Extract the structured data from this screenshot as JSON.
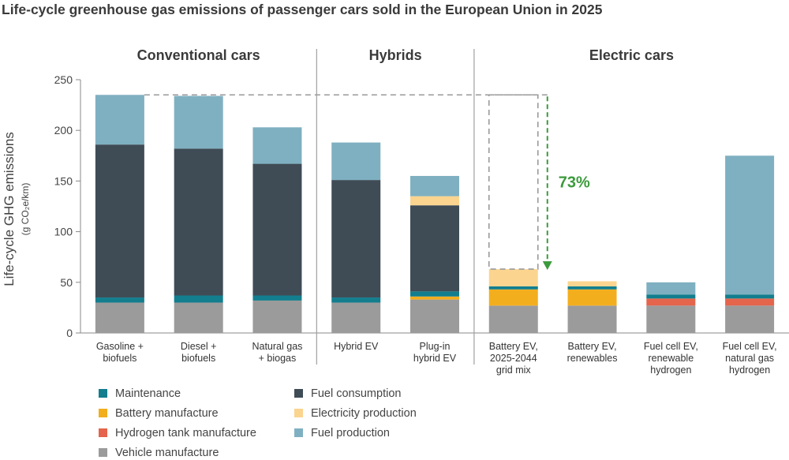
{
  "chart_data": {
    "type": "bar",
    "stacked": true,
    "title": "Life-cycle greenhouse gas emissions of passenger cars sold in the European Union in 2025",
    "ylabel": "Life-cycle GHG emissions",
    "ylabel_unit": "(g CO₂e/km)",
    "ylim": [
      0,
      250
    ],
    "yticks": [
      0,
      50,
      100,
      150,
      200,
      250
    ],
    "groups": [
      {
        "label": "Conventional cars",
        "start": 0,
        "end": 2
      },
      {
        "label": "Hybrids",
        "start": 3,
        "end": 4
      },
      {
        "label": "Electric cars",
        "start": 5,
        "end": 8
      }
    ],
    "categories": [
      [
        "Gasoline +",
        "biofuels"
      ],
      [
        "Diesel +",
        "biofuels"
      ],
      [
        "Natural gas",
        "+ biogas"
      ],
      [
        "Hybrid EV"
      ],
      [
        "Plug-in",
        "hybrid EV"
      ],
      [
        "Battery EV,",
        "2025-2044",
        "grid mix"
      ],
      [
        "Battery EV,",
        "renewables"
      ],
      [
        "Fuel cell EV,",
        "renewable",
        "hydrogen"
      ],
      [
        "Fuel cell EV,",
        "natural gas",
        "hydrogen"
      ]
    ],
    "series": [
      {
        "name": "Vehicle manufacture",
        "color": "#9b9b9b",
        "values": [
          30,
          30,
          32,
          30,
          33,
          27,
          27,
          27,
          27
        ]
      },
      {
        "name": "Battery manufacture",
        "color": "#f3ae1e",
        "values": [
          0,
          0,
          0,
          0,
          3,
          16,
          16,
          0,
          0
        ]
      },
      {
        "name": "Hydrogen tank manufacture",
        "color": "#e4644c",
        "values": [
          0,
          0,
          0,
          0,
          0,
          0,
          0,
          7,
          7
        ]
      },
      {
        "name": "Maintenance",
        "color": "#127e8e",
        "values": [
          5,
          7,
          5,
          5,
          5,
          3,
          3,
          4,
          4
        ]
      },
      {
        "name": "Fuel consumption",
        "color": "#3f4c56",
        "values": [
          151,
          145,
          130,
          116,
          85,
          0,
          0,
          0,
          0
        ]
      },
      {
        "name": "Electricity production",
        "color": "#fbd48f",
        "values": [
          0,
          0,
          0,
          0,
          9,
          17,
          5,
          0,
          0
        ]
      },
      {
        "name": "Fuel production",
        "color": "#7fb0c1",
        "values": [
          49,
          52,
          36,
          37,
          20,
          0,
          0,
          12,
          137
        ]
      }
    ],
    "legend_order": [
      "Maintenance",
      "Fuel consumption",
      "Battery manufacture",
      "Electricity production",
      "Hydrogen tank manufacture",
      "Fuel production",
      "Vehicle manufacture"
    ],
    "legend_placement": "bottom-left",
    "annotation": {
      "text": "73%",
      "color": "#3c9a3c",
      "from_value": 235,
      "to_value": 63
    }
  }
}
